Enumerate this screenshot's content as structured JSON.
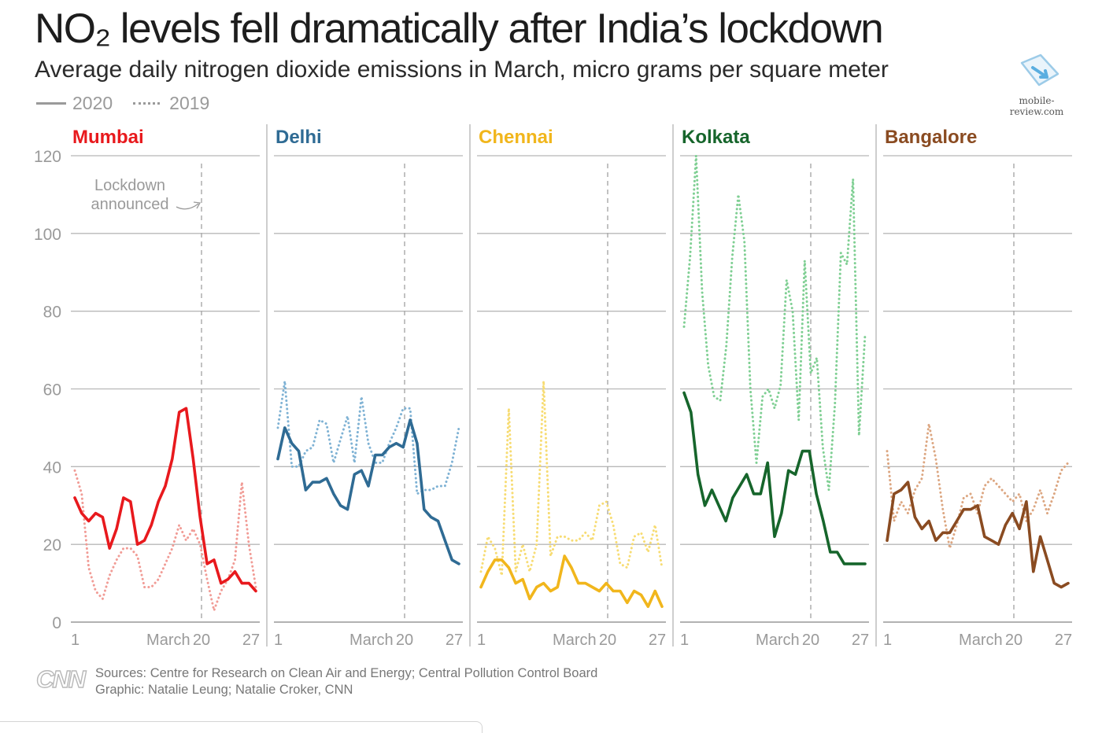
{
  "title": "NO₂ levels fell dramatically after India’s lockdown",
  "subtitle": "Average daily nitrogen dioxide emissions in March, micro grams per square meter",
  "legend": {
    "solid_label": "2020",
    "dotted_label": "2019"
  },
  "watermark": {
    "text": "mobile-review.com",
    "icon": "share-arrow-icon"
  },
  "footer": {
    "logo": "CNN",
    "sources": "Sources: Centre for Research on Clean Air and Energy; Central Pollution Control Board",
    "graphic": "Graphic: Natalie Leung; Natalie Croker, CNN"
  },
  "chart_data": {
    "type": "line",
    "ylim": [
      0,
      120
    ],
    "yticks": [
      0,
      20,
      40,
      60,
      80,
      100,
      120
    ],
    "xlim": [
      1,
      31
    ],
    "xtick_labels": [
      "1",
      "March",
      "20",
      "27"
    ],
    "annotation": {
      "text_line1": "Lockdown",
      "text_line2": "announced",
      "x": 22
    },
    "grid": true,
    "panels": [
      {
        "name": "Mumbai",
        "color_2020": "#e8191d",
        "color_2019": "#f19c96",
        "series_2020": [
          32,
          28,
          26,
          28,
          27,
          19,
          24,
          32,
          31,
          20,
          21,
          25,
          31,
          35,
          42,
          54,
          55,
          42,
          27,
          15,
          16,
          10,
          11,
          13,
          10,
          10,
          8
        ],
        "series_2019": [
          39,
          33,
          14,
          8,
          6,
          12,
          16,
          19,
          19,
          17,
          9,
          9,
          11,
          15,
          19,
          25,
          21,
          24,
          20,
          11,
          3,
          8,
          11,
          16,
          36,
          20,
          9
        ]
      },
      {
        "name": "Delhi",
        "color_2020": "#2f6b94",
        "color_2019": "#7fb2d4",
        "series_2020": [
          42,
          50,
          46,
          44,
          34,
          36,
          36,
          37,
          33,
          30,
          29,
          38,
          39,
          35,
          43,
          43,
          45,
          46,
          45,
          52,
          46,
          29,
          27,
          26,
          21,
          16,
          15
        ],
        "series_2019": [
          50,
          62,
          40,
          40,
          44,
          45,
          52,
          51,
          41,
          47,
          53,
          41,
          58,
          46,
          41,
          41,
          46,
          50,
          55,
          55,
          33,
          34,
          34,
          35,
          35,
          41,
          50
        ]
      },
      {
        "name": "Chennai",
        "color_2020": "#f1b61c",
        "color_2019": "#f7dc73",
        "series_2020": [
          9,
          13,
          16,
          16,
          14,
          10,
          11,
          6,
          9,
          10,
          8,
          9,
          17,
          14,
          10,
          10,
          9,
          8,
          10,
          8,
          8,
          5,
          8,
          7,
          4,
          8,
          4
        ],
        "series_2019": [
          13,
          22,
          19,
          12,
          55,
          13,
          20,
          13,
          20,
          62,
          17,
          22,
          22,
          21,
          21,
          23,
          21,
          30,
          31,
          25,
          15,
          14,
          22,
          23,
          18,
          25,
          14
        ]
      },
      {
        "name": "Kolkata",
        "color_2020": "#16652b",
        "color_2019": "#7fcf93",
        "series_2020": [
          59,
          54,
          38,
          30,
          34,
          30,
          26,
          32,
          35,
          38,
          33,
          33,
          41,
          22,
          28,
          39,
          38,
          44,
          44,
          33,
          26,
          18,
          18,
          15,
          15,
          15,
          15
        ],
        "series_2019": [
          76,
          94,
          120,
          85,
          66,
          58,
          57,
          71,
          94,
          110,
          98,
          60,
          41,
          58,
          60,
          55,
          61,
          88,
          80,
          52,
          93,
          64,
          68,
          45,
          34,
          56,
          95,
          92,
          114,
          48,
          74
        ]
      },
      {
        "name": "Bangalore",
        "color_2020": "#8a4b21",
        "color_2019": "#dca681",
        "series_2020": [
          21,
          33,
          34,
          36,
          27,
          24,
          26,
          21,
          23,
          23,
          26,
          29,
          29,
          30,
          22,
          21,
          20,
          25,
          28,
          24,
          31,
          13,
          22,
          16,
          10,
          9,
          10
        ],
        "series_2019": [
          44,
          26,
          31,
          28,
          34,
          37,
          51,
          42,
          29,
          19,
          25,
          32,
          33,
          28,
          35,
          37,
          35,
          33,
          31,
          33,
          26,
          29,
          34,
          28,
          33,
          39,
          41
        ]
      }
    ]
  }
}
